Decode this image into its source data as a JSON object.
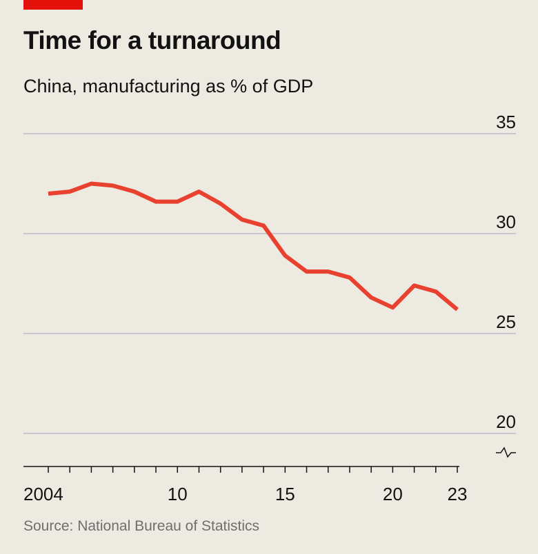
{
  "header": {
    "title": "Time for a turnaround",
    "subtitle": "China, manufacturing as % of GDP"
  },
  "footer": {
    "source": "Source: National Bureau of Statistics"
  },
  "colors": {
    "background": "#edeae2",
    "brand_tag": "#e3120b",
    "line": "#e8412f",
    "gridline": "#b8bcc7",
    "axis": "#121212"
  },
  "chart_data": {
    "type": "line",
    "title": "Time for a turnaround",
    "subtitle": "China, manufacturing as % of GDP",
    "xlabel": "",
    "ylabel": "",
    "x": [
      2004,
      2005,
      2006,
      2007,
      2008,
      2009,
      2010,
      2011,
      2012,
      2013,
      2014,
      2015,
      2016,
      2017,
      2018,
      2019,
      2020,
      2021,
      2022,
      2023
    ],
    "series": [
      {
        "values": [
          32.0,
          32.1,
          32.5,
          32.4,
          32.1,
          31.6,
          31.6,
          32.1,
          31.5,
          30.7,
          30.4,
          28.9,
          28.1,
          28.1,
          27.8,
          26.8,
          26.3,
          27.4,
          27.1,
          26.2
        ]
      }
    ],
    "ylim": [
      20,
      35
    ],
    "y_ticks": [
      "20",
      "25",
      "30",
      "35"
    ],
    "x_tick_labels": [
      {
        "x": 2004,
        "label": "2004"
      },
      {
        "x": 2010,
        "label": "10"
      },
      {
        "x": 2015,
        "label": "15"
      },
      {
        "x": 2020,
        "label": "20"
      },
      {
        "x": 2023,
        "label": "23"
      }
    ],
    "y_axis_break": true,
    "grid": true
  }
}
